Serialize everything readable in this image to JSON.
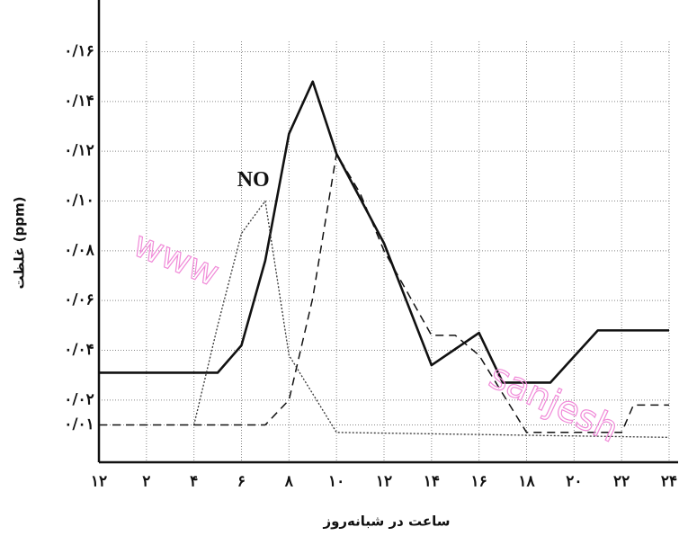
{
  "chart_data": {
    "type": "line",
    "xlabel": "ساعت در شبانه‌روز",
    "ylabel": "غلظت (ppm)",
    "annotations": [
      {
        "text": "NO",
        "x": 6.5,
        "y": 0.108
      }
    ],
    "watermarks": [
      "www",
      "sanjesh"
    ],
    "grid": true,
    "xlim": [
      0,
      24
    ],
    "ylim": [
      -0.005,
      0.175
    ],
    "xticks": [
      {
        "value": 0,
        "label": "۱۲"
      },
      {
        "value": 2,
        "label": "۲"
      },
      {
        "value": 4,
        "label": "۴"
      },
      {
        "value": 6,
        "label": "۶"
      },
      {
        "value": 8,
        "label": "۸"
      },
      {
        "value": 10,
        "label": "۱۰"
      },
      {
        "value": 12,
        "label": "۱۲"
      },
      {
        "value": 14,
        "label": "۱۴"
      },
      {
        "value": 16,
        "label": "۱۶"
      },
      {
        "value": 18,
        "label": "۱۸"
      },
      {
        "value": 20,
        "label": "۲۰"
      },
      {
        "value": 22,
        "label": "۲۲"
      },
      {
        "value": 24,
        "label": "۲۴"
      }
    ],
    "yticks": [
      {
        "value": 0.01,
        "label": "۰/۰۱"
      },
      {
        "value": 0.02,
        "label": "۰/۰۲"
      },
      {
        "value": 0.04,
        "label": "۰/۰۴"
      },
      {
        "value": 0.06,
        "label": "۰/۰۶"
      },
      {
        "value": 0.08,
        "label": "۰/۰۸"
      },
      {
        "value": 0.1,
        "label": "۰/۱۰"
      },
      {
        "value": 0.12,
        "label": "۰/۱۲"
      },
      {
        "value": 0.14,
        "label": "۰/۱۴"
      },
      {
        "value": 0.16,
        "label": "۰/۱۶"
      }
    ],
    "series": [
      {
        "color": "#111111",
        "style": "solid",
        "x": [
          0,
          5,
          6,
          7,
          8,
          9,
          10,
          12,
          14,
          16,
          17,
          19,
          21,
          24
        ],
        "values": [
          0.031,
          0.031,
          0.042,
          0.076,
          0.127,
          0.148,
          0.119,
          0.083,
          0.034,
          0.047,
          0.027,
          0.027,
          0.048,
          0.048
        ]
      },
      {
        "color": "#111111",
        "style": "dashed",
        "x": [
          0,
          7,
          8,
          9,
          10,
          11,
          12,
          14,
          15,
          16,
          18,
          22,
          22.5,
          24
        ],
        "values": [
          0.01,
          0.01,
          0.02,
          0.061,
          0.119,
          0.103,
          0.08,
          0.046,
          0.046,
          0.038,
          0.007,
          0.007,
          0.018,
          0.018
        ]
      },
      {
        "color": "#333333",
        "style": "dotted",
        "x": [
          4,
          5,
          6,
          7,
          8,
          10,
          24
        ],
        "values": [
          0.01,
          0.05,
          0.087,
          0.1,
          0.038,
          0.007,
          0.005
        ]
      }
    ]
  }
}
